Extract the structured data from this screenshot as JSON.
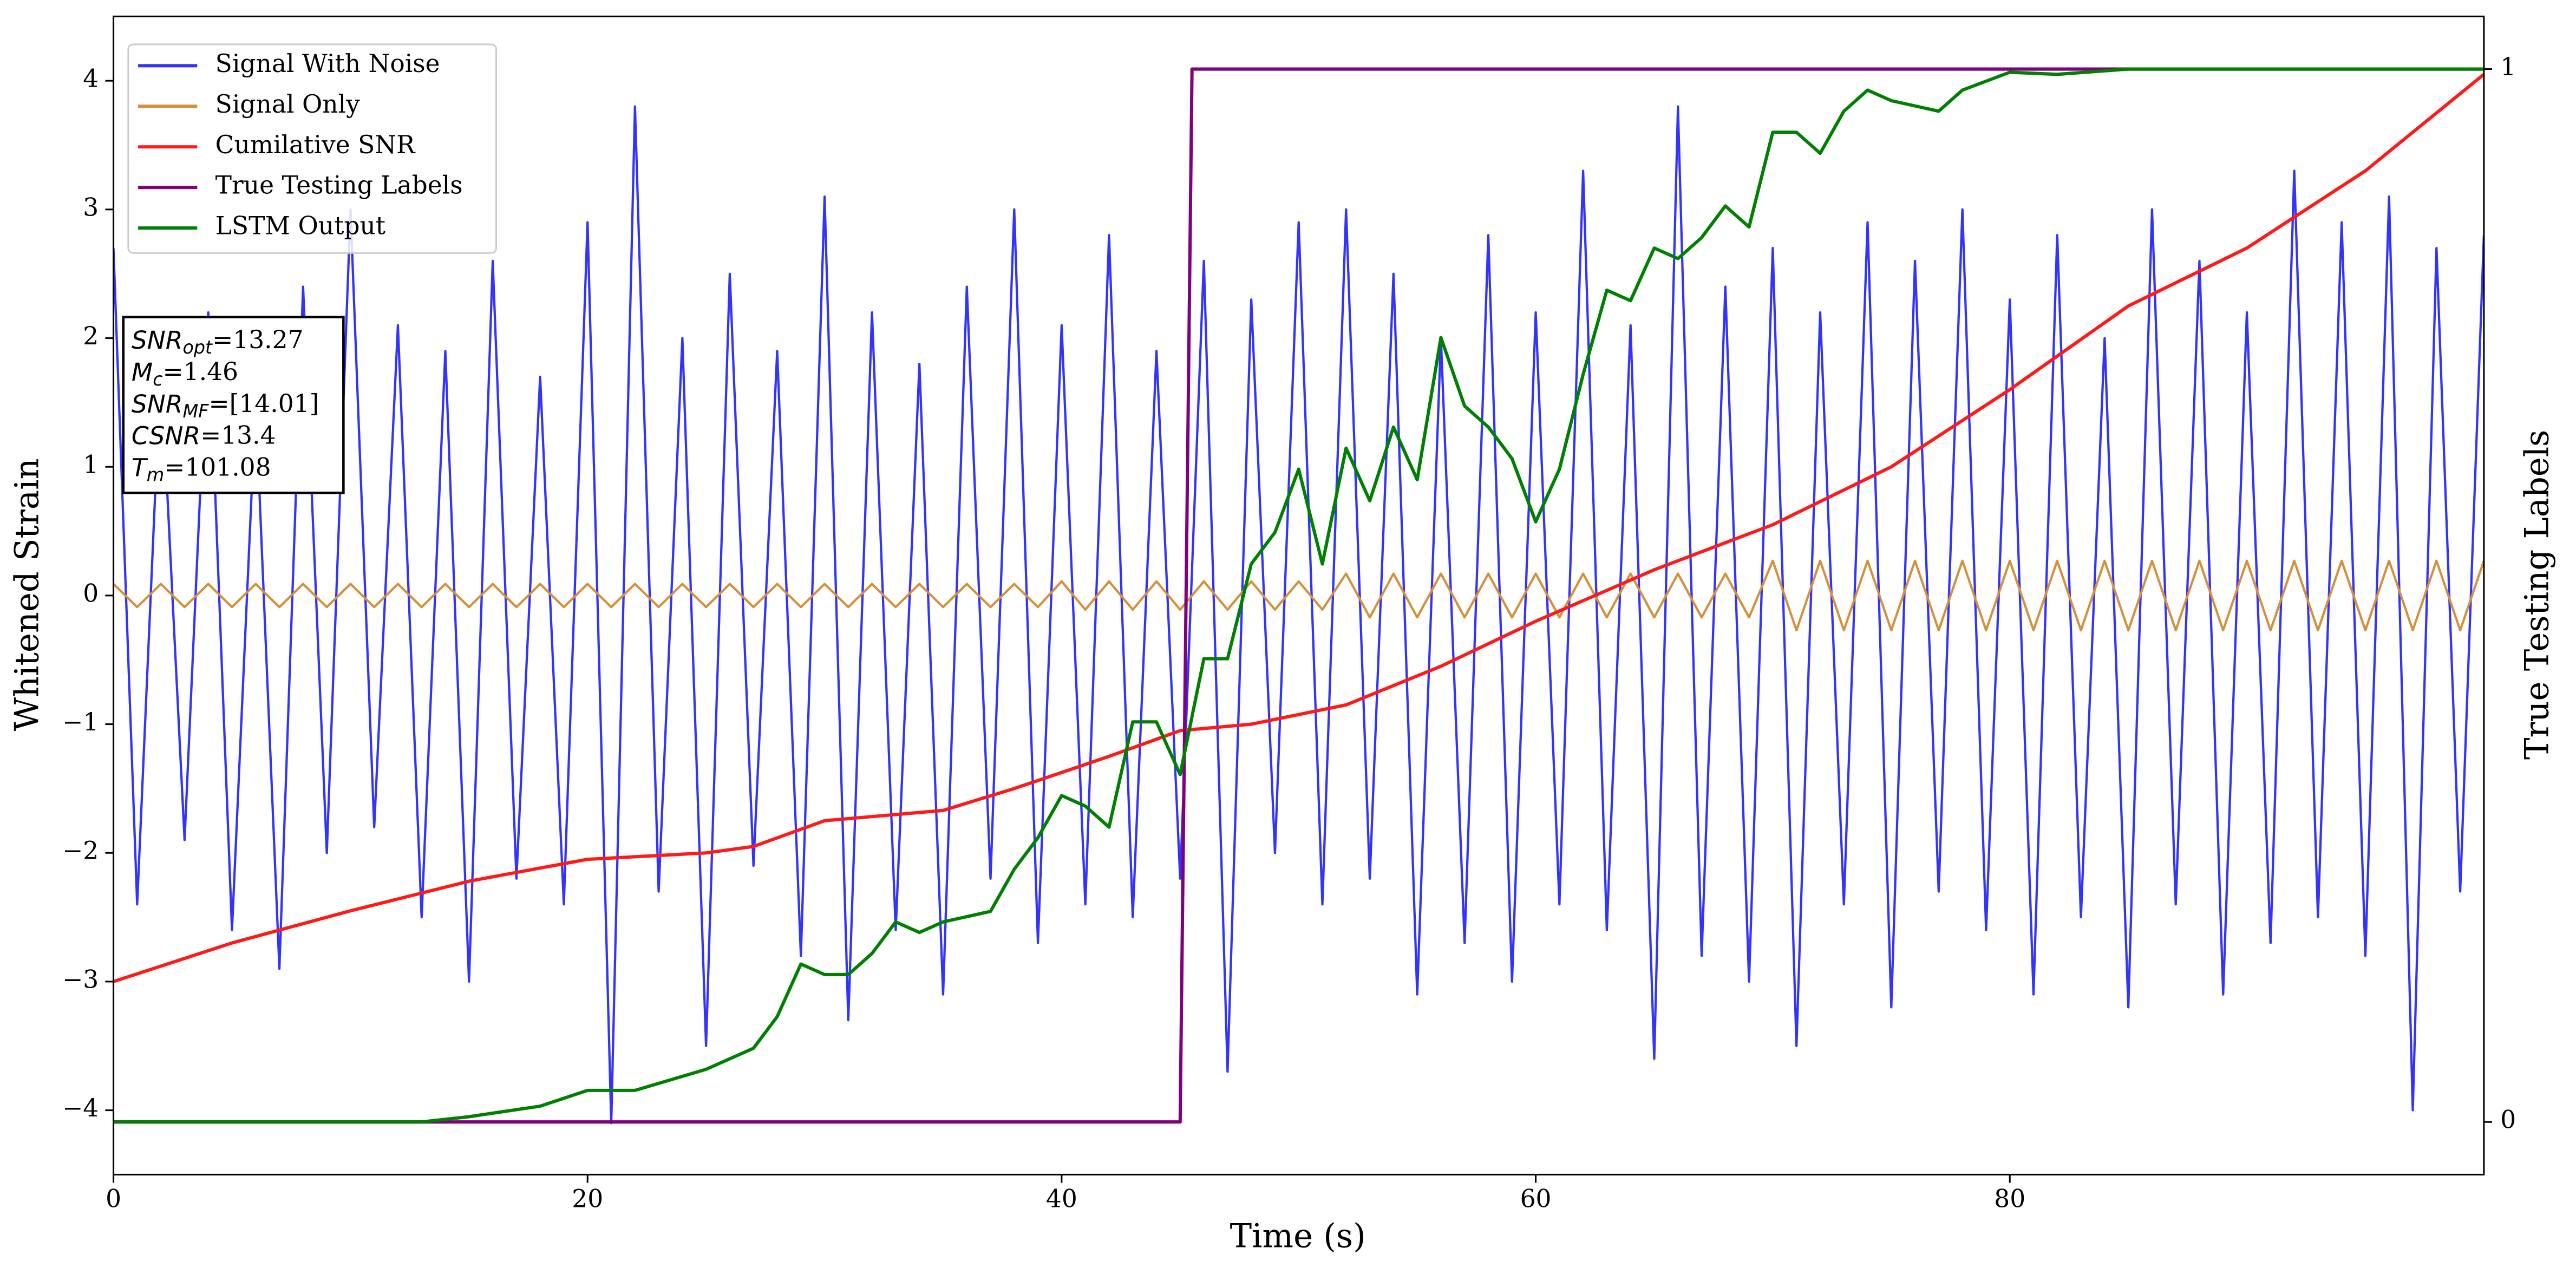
{
  "chart_data": {
    "type": "line",
    "xlabel": "Time (s)",
    "ylabel": "Whitened Strain",
    "y2label": "True Testing Labels",
    "xlim": [
      0,
      100
    ],
    "xticks": [
      0,
      20,
      40,
      60,
      80
    ],
    "ylim": [
      -4.5,
      4.5
    ],
    "yticks": [
      {
        "value": -4,
        "label": "−4"
      },
      {
        "value": -3,
        "label": "−3"
      },
      {
        "value": -2,
        "label": "−2"
      },
      {
        "value": -1,
        "label": "−1"
      },
      0,
      1,
      2,
      3,
      4
    ],
    "y2lim": [
      -0.05,
      1.05
    ],
    "y2ticks": [
      0,
      1
    ],
    "legend": "upper left",
    "x": [
      0,
      1,
      2,
      3,
      4,
      5,
      6,
      7,
      8,
      9,
      10,
      11,
      12,
      13,
      14,
      15,
      16,
      17,
      18,
      19,
      20,
      21,
      22,
      23,
      24,
      25,
      26,
      27,
      28,
      29,
      30,
      31,
      32,
      33,
      34,
      35,
      36,
      37,
      38,
      39,
      40,
      41,
      42,
      43,
      44,
      45,
      46,
      47,
      48,
      49,
      50,
      51,
      52,
      53,
      54,
      55,
      56,
      57,
      58,
      59,
      60,
      61,
      62,
      63,
      64,
      65,
      66,
      67,
      68,
      69,
      70,
      71,
      72,
      73,
      74,
      75,
      76,
      77,
      78,
      79,
      80,
      81,
      82,
      83,
      84,
      85,
      86,
      87,
      88,
      89,
      90,
      91,
      92,
      93,
      94,
      95,
      96,
      97,
      98,
      99,
      100
    ],
    "series": [
      {
        "name": "Signal With Noise",
        "color": "#3333ff",
        "values": [
          2.7,
          -2.4,
          1.8,
          -1.9,
          2.2,
          -2.6,
          1.5,
          -2.9,
          2.4,
          -2.0,
          3.0,
          -1.8,
          2.1,
          -2.5,
          1.9,
          -3.0,
          2.6,
          -2.2,
          1.7,
          -2.4,
          2.9,
          -4.1,
          3.8,
          -2.3,
          2.0,
          -3.5,
          2.5,
          -2.1,
          1.9,
          -2.8,
          3.1,
          -3.3,
          2.2,
          -2.6,
          1.8,
          -3.1,
          2.4,
          -2.2,
          3.0,
          -2.7,
          2.1,
          -2.4,
          2.8,
          -2.5,
          1.9,
          -2.2,
          2.6,
          -3.7,
          2.3,
          -2.0,
          2.9,
          -2.4,
          3.0,
          -2.2,
          2.5,
          -3.1,
          2.0,
          -2.7,
          2.8,
          -3.0,
          2.2,
          -2.4,
          3.3,
          -2.6,
          2.1,
          -3.6,
          3.8,
          -2.8,
          2.4,
          -3.0,
          2.7,
          -3.5,
          2.2,
          -2.4,
          2.9,
          -3.2,
          2.6,
          -2.3,
          3.0,
          -2.6,
          2.3,
          -3.1,
          2.8,
          -2.5,
          2.0,
          -3.2,
          3.0,
          -2.4,
          2.6,
          -3.1,
          2.2,
          -2.7,
          3.3,
          -2.5,
          2.9,
          -2.8,
          3.1,
          -4.0,
          2.7,
          -2.3,
          2.8
        ]
      },
      {
        "name": "Signal Only",
        "color": "#d4903a",
        "values": [
          0.09,
          -0.09,
          0.09,
          -0.09,
          0.09,
          -0.09,
          0.09,
          -0.09,
          0.09,
          -0.09,
          0.09,
          -0.09,
          0.09,
          -0.09,
          0.09,
          -0.09,
          0.09,
          -0.09,
          0.09,
          -0.09,
          0.09,
          -0.09,
          0.09,
          -0.09,
          0.09,
          -0.09,
          0.09,
          -0.09,
          0.09,
          -0.09,
          0.09,
          -0.09,
          0.09,
          -0.09,
          0.09,
          -0.09,
          0.09,
          -0.09,
          0.09,
          -0.09,
          0.11,
          -0.11,
          0.11,
          -0.11,
          0.11,
          -0.11,
          0.11,
          -0.11,
          0.11,
          -0.11,
          0.11,
          -0.11,
          0.17,
          -0.17,
          0.17,
          -0.17,
          0.17,
          -0.17,
          0.17,
          -0.17,
          0.17,
          -0.17,
          0.17,
          -0.17,
          0.17,
          -0.17,
          0.17,
          -0.17,
          0.17,
          -0.17,
          0.27,
          -0.27,
          0.27,
          -0.27,
          0.27,
          -0.27,
          0.27,
          -0.27,
          0.27,
          -0.27,
          0.27,
          -0.27,
          0.27,
          -0.27,
          0.27,
          -0.27,
          0.27,
          -0.27,
          0.27,
          -0.27,
          0.27,
          -0.27,
          0.27,
          -0.27,
          0.27,
          -0.27,
          0.27,
          -0.27,
          0.27,
          -0.27,
          0.27
        ]
      },
      {
        "name": "Cumilative SNR",
        "color": "#ff1a1a",
        "x": [
          0,
          5,
          10,
          15,
          20,
          25,
          27,
          30,
          35,
          38,
          42,
          45,
          48,
          52,
          56,
          60,
          65,
          70,
          75,
          80,
          85,
          90,
          95,
          100
        ],
        "values": [
          -3,
          -2.7,
          -2.45,
          -2.22,
          -2.05,
          -2.0,
          -1.95,
          -1.75,
          -1.67,
          -1.5,
          -1.25,
          -1.05,
          -1.0,
          -0.85,
          -0.55,
          -0.2,
          0.2,
          0.55,
          1.0,
          1.6,
          2.25,
          2.7,
          3.3,
          4.05
        ]
      },
      {
        "name": "True Testing Labels",
        "color": "#800080",
        "axis": "y2",
        "x": [
          0,
          45,
          45.5,
          100
        ],
        "values": [
          0,
          0,
          1,
          1
        ]
      },
      {
        "name": "LSTM Output",
        "color": "#008000",
        "axis": "y2",
        "x": [
          0,
          13,
          15,
          18,
          20,
          22,
          25,
          27,
          28,
          29,
          30,
          31,
          32,
          33,
          34,
          35,
          37,
          38,
          39,
          40,
          41,
          42,
          43,
          44,
          45,
          46,
          47,
          48,
          49,
          50,
          51,
          52,
          53,
          54,
          55,
          56,
          57,
          58,
          59,
          60,
          61,
          62,
          63,
          64,
          65,
          66,
          67,
          68,
          69,
          70,
          71,
          72,
          73,
          74,
          75,
          77,
          78,
          80,
          82,
          85,
          100
        ],
        "values": [
          0,
          0,
          0.005,
          0.015,
          0.03,
          0.03,
          0.05,
          0.07,
          0.1,
          0.15,
          0.14,
          0.14,
          0.16,
          0.19,
          0.18,
          0.19,
          0.2,
          0.24,
          0.27,
          0.31,
          0.3,
          0.28,
          0.38,
          0.38,
          0.33,
          0.44,
          0.44,
          0.53,
          0.56,
          0.62,
          0.53,
          0.64,
          0.59,
          0.66,
          0.61,
          0.745,
          0.68,
          0.66,
          0.63,
          0.57,
          0.62,
          0.71,
          0.79,
          0.78,
          0.83,
          0.82,
          0.84,
          0.87,
          0.85,
          0.94,
          0.94,
          0.92,
          0.96,
          0.98,
          0.97,
          0.96,
          0.98,
          0.997,
          0.995,
          1.0,
          1.0
        ]
      }
    ],
    "annotation": [
      {
        "name": "SNR",
        "sub": "opt",
        "rest": "=13.27"
      },
      {
        "name": "M",
        "sub": "c",
        "rest": "=1.46"
      },
      {
        "name": "SNR",
        "sub": "MF",
        "rest": "=[14.01]"
      },
      {
        "name": "CSNR",
        "rest": "=13.4"
      },
      {
        "name": "T",
        "sub": "m",
        "rest": "=101.08"
      }
    ]
  }
}
